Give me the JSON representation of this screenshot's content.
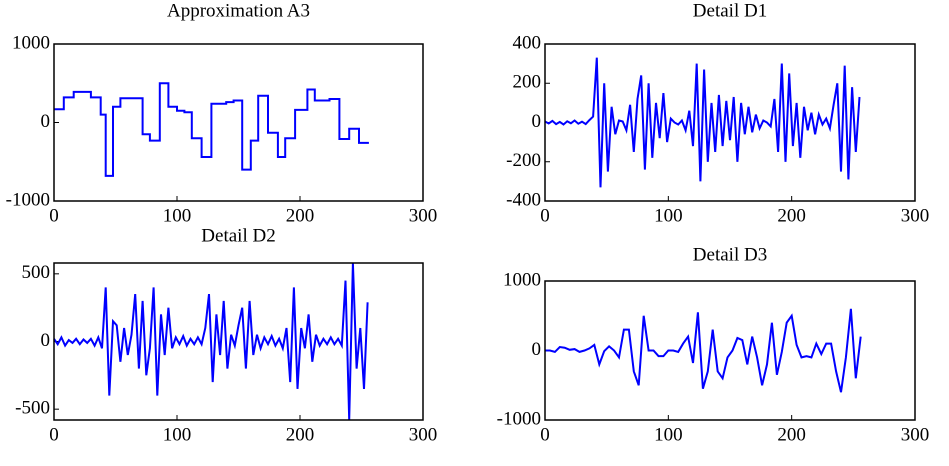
{
  "chart_data": [
    {
      "type": "line",
      "title": "Approximation A3",
      "color": "#0000ff",
      "xlim": [
        0,
        300
      ],
      "xticks": [
        0,
        100,
        200,
        300
      ],
      "ylim": [
        -1000,
        1000
      ],
      "yticks": [
        -1000,
        0,
        1000
      ],
      "x": [
        0,
        8,
        8,
        16,
        16,
        30,
        30,
        38,
        38,
        42,
        42,
        48,
        48,
        54,
        54,
        72,
        72,
        78,
        78,
        86,
        86,
        93,
        93,
        100,
        100,
        106,
        106,
        112,
        112,
        120,
        120,
        128,
        128,
        140,
        140,
        146,
        146,
        153,
        153,
        160,
        160,
        166,
        166,
        174,
        174,
        182,
        182,
        188,
        188,
        196,
        196,
        206,
        206,
        212,
        212,
        224,
        224,
        232,
        232,
        240,
        240,
        248,
        248,
        256
      ],
      "values": [
        170,
        170,
        320,
        320,
        390,
        390,
        320,
        320,
        100,
        100,
        -680,
        -680,
        200,
        200,
        310,
        310,
        -150,
        -150,
        -230,
        -230,
        500,
        500,
        200,
        200,
        150,
        150,
        130,
        130,
        -200,
        -200,
        -440,
        -440,
        240,
        240,
        260,
        260,
        280,
        280,
        -600,
        -600,
        -230,
        -230,
        340,
        340,
        -130,
        -130,
        -440,
        -440,
        -200,
        -200,
        160,
        160,
        420,
        420,
        280,
        280,
        300,
        300,
        -210,
        -210,
        -80,
        -80,
        -260,
        -260
      ]
    },
    {
      "type": "line",
      "title": "Detail D1",
      "color": "#0000ff",
      "xlim": [
        0,
        300
      ],
      "xticks": [
        0,
        100,
        200,
        300
      ],
      "ylim": [
        -400,
        400
      ],
      "yticks": [
        -400,
        -200,
        0,
        200,
        400
      ],
      "x": [
        0,
        3,
        6,
        9,
        12,
        15,
        18,
        21,
        24,
        27,
        30,
        33,
        36,
        39,
        42,
        45,
        48,
        51,
        54,
        57,
        60,
        63,
        66,
        69,
        72,
        75,
        78,
        81,
        84,
        87,
        90,
        93,
        96,
        99,
        102,
        105,
        108,
        111,
        114,
        117,
        120,
        123,
        126,
        129,
        132,
        135,
        138,
        141,
        144,
        147,
        150,
        153,
        156,
        159,
        162,
        165,
        168,
        171,
        174,
        177,
        180,
        183,
        186,
        189,
        192,
        195,
        198,
        201,
        204,
        207,
        210,
        213,
        216,
        219,
        222,
        225,
        228,
        231,
        234,
        237,
        240,
        243,
        246,
        249,
        252,
        255
      ],
      "values": [
        5,
        -5,
        8,
        -8,
        3,
        -10,
        6,
        -4,
        10,
        -6,
        4,
        -8,
        12,
        30,
        330,
        -330,
        200,
        -250,
        80,
        -60,
        10,
        5,
        -40,
        90,
        -150,
        120,
        240,
        -240,
        200,
        -180,
        100,
        -80,
        150,
        -100,
        20,
        0,
        -10,
        10,
        -40,
        60,
        -120,
        300,
        -300,
        270,
        -200,
        100,
        -150,
        140,
        -120,
        110,
        -90,
        130,
        -200,
        100,
        -60,
        80,
        -50,
        40,
        -30,
        10,
        0,
        -20,
        120,
        -150,
        300,
        -200,
        250,
        -120,
        100,
        -180,
        80,
        -40,
        50,
        -60,
        40,
        -10,
        20,
        -30,
        90,
        200,
        -250,
        290,
        -290,
        180,
        -150,
        130
      ]
    },
    {
      "type": "line",
      "title": "Detail D2",
      "color": "#0000ff",
      "xlim": [
        0,
        300
      ],
      "xticks": [
        0,
        100,
        200,
        300
      ],
      "ylim": [
        -580,
        580
      ],
      "yticks": [
        -500,
        0,
        500
      ],
      "x": [
        0,
        3,
        6,
        9,
        12,
        15,
        18,
        21,
        24,
        27,
        30,
        33,
        36,
        39,
        42,
        45,
        48,
        51,
        54,
        57,
        60,
        63,
        66,
        69,
        72,
        75,
        78,
        81,
        84,
        87,
        90,
        93,
        96,
        99,
        102,
        105,
        108,
        111,
        114,
        117,
        120,
        123,
        126,
        129,
        132,
        135,
        138,
        141,
        144,
        147,
        150,
        153,
        156,
        159,
        162,
        165,
        168,
        171,
        174,
        177,
        180,
        183,
        186,
        189,
        192,
        195,
        198,
        201,
        204,
        207,
        210,
        213,
        216,
        219,
        222,
        225,
        228,
        231,
        234,
        237,
        240,
        243,
        246,
        249,
        252,
        255
      ],
      "values": [
        20,
        -20,
        30,
        -30,
        10,
        -10,
        20,
        -20,
        15,
        -10,
        20,
        -30,
        30,
        -50,
        400,
        -400,
        150,
        120,
        -150,
        100,
        -100,
        50,
        350,
        -200,
        300,
        -250,
        -50,
        400,
        -400,
        200,
        -100,
        250,
        -50,
        30,
        -20,
        40,
        -30,
        20,
        -20,
        30,
        -20,
        100,
        350,
        -300,
        200,
        -100,
        300,
        -200,
        50,
        -30,
        120,
        250,
        -200,
        300,
        -100,
        50,
        -50,
        30,
        -20,
        40,
        -30,
        20,
        -50,
        100,
        -300,
        400,
        -350,
        100,
        -50,
        200,
        -150,
        50,
        -30,
        20,
        -20,
        30,
        -20,
        20,
        -30,
        450,
        -580,
        580,
        -200,
        100,
        -350,
        290
      ]
    },
    {
      "type": "line",
      "title": "Detail D3",
      "color": "#0000ff",
      "xlim": [
        0,
        300
      ],
      "xticks": [
        0,
        100,
        200,
        300
      ],
      "ylim": [
        -1000,
        1000
      ],
      "yticks": [
        -1000,
        0,
        1000
      ],
      "x": [
        0,
        4,
        8,
        12,
        16,
        20,
        24,
        28,
        32,
        36,
        40,
        44,
        48,
        52,
        56,
        60,
        64,
        68,
        72,
        76,
        80,
        84,
        88,
        92,
        96,
        100,
        104,
        108,
        112,
        116,
        120,
        124,
        128,
        132,
        136,
        140,
        144,
        148,
        152,
        156,
        160,
        164,
        168,
        172,
        176,
        180,
        184,
        188,
        192,
        196,
        200,
        204,
        208,
        212,
        216,
        220,
        224,
        228,
        232,
        236,
        240,
        244,
        248,
        252,
        256
      ],
      "values": [
        0,
        0,
        -20,
        50,
        40,
        10,
        20,
        -20,
        0,
        30,
        80,
        -200,
        -10,
        60,
        0,
        -100,
        300,
        300,
        -300,
        -500,
        500,
        0,
        0,
        -80,
        -80,
        0,
        0,
        -20,
        100,
        200,
        -180,
        550,
        -550,
        -300,
        300,
        -300,
        -400,
        -100,
        0,
        180,
        150,
        -200,
        200,
        -100,
        -500,
        -200,
        400,
        -350,
        -20,
        400,
        500,
        80,
        -100,
        -80,
        -100,
        100,
        -50,
        100,
        100,
        -300,
        -600,
        -100,
        600,
        -400,
        200
      ]
    }
  ]
}
